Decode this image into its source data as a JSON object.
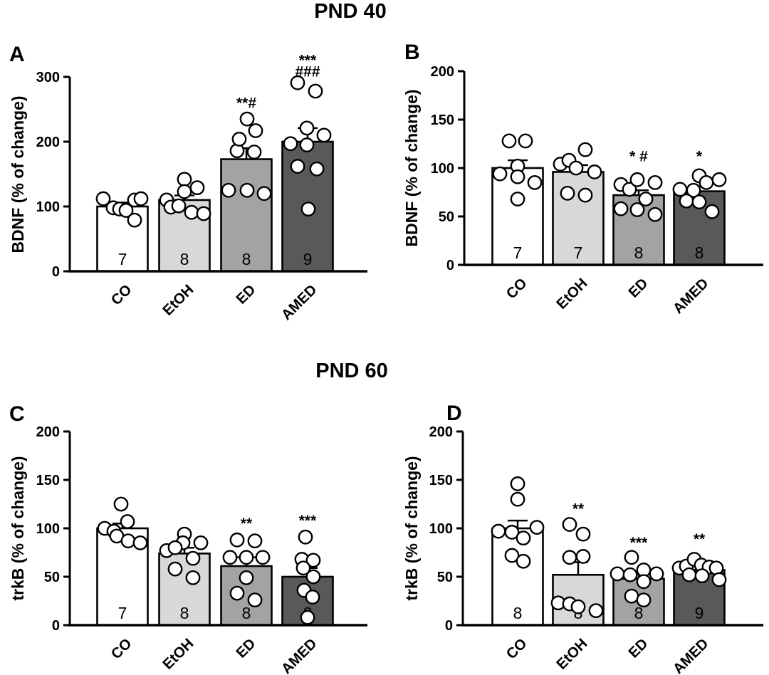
{
  "figure": {
    "title_top": "PND 40",
    "title_bottom": "PND 60",
    "point_style": "open-circle",
    "colors": {
      "CO": "#ffffff",
      "EtOH": "#d8d8d8",
      "ED": "#a3a3a3",
      "AMED": "#595959",
      "outline": "#000000"
    }
  },
  "chart_data": [
    {
      "type": "bar",
      "panel": "A",
      "section": "PND 40",
      "ylabel": "BDNF (% of change)",
      "ylim": [
        0,
        300
      ],
      "ytick_step": 100,
      "categories": [
        "CO",
        "EtOH",
        "ED",
        "AMED"
      ],
      "bars": [
        {
          "category": "CO",
          "mean": 100,
          "sem": 6,
          "n": 7,
          "fill": "#ffffff",
          "sig_lines": [],
          "sig_y": null,
          "points": [
            [
              -27,
              112
            ],
            [
              -13,
              98
            ],
            [
              -4,
              96
            ],
            [
              5,
              94
            ],
            [
              17,
              110
            ],
            [
              26,
              112
            ],
            [
              17,
              79
            ]
          ]
        },
        {
          "category": "EtOH",
          "mean": 110,
          "sem": 7,
          "n": 8,
          "fill": "#d8d8d8",
          "sig_lines": [],
          "sig_y": null,
          "points": [
            [
              -25,
              110
            ],
            [
              -19,
              99
            ],
            [
              -8,
              101
            ],
            [
              0,
              142
            ],
            [
              0,
              123
            ],
            [
              18,
              129
            ],
            [
              10,
              91
            ],
            [
              27,
              89
            ]
          ]
        },
        {
          "category": "ED",
          "mean": 173,
          "sem": 17,
          "n": 8,
          "fill": "#a3a3a3",
          "sig_lines": [
            "**#"
          ],
          "sig_y": 252,
          "points": [
            [
              -25,
              125
            ],
            [
              1,
              125
            ],
            [
              25,
              120
            ],
            [
              -13,
              186
            ],
            [
              11,
              184
            ],
            [
              -10,
              204
            ],
            [
              1,
              235
            ],
            [
              13,
              217
            ]
          ]
        },
        {
          "category": "AMED",
          "mean": 200,
          "sem": 21,
          "n": 9,
          "fill": "#595959",
          "sig_lines": [
            "***",
            "###"
          ],
          "sig_y": 318,
          "points": [
            [
              -14,
              291
            ],
            [
              11,
              278
            ],
            [
              -1,
              221
            ],
            [
              -24,
              197
            ],
            [
              -1,
              195
            ],
            [
              23,
              210
            ],
            [
              -14,
              162
            ],
            [
              13,
              158
            ],
            [
              1,
              96
            ]
          ]
        }
      ]
    },
    {
      "type": "bar",
      "panel": "B",
      "section": "PND 40",
      "ylabel": "BDNF (% of change)",
      "ylim": [
        0,
        200
      ],
      "ytick_step": 50,
      "categories": [
        "CO",
        "EtOH",
        "ED",
        "AMED"
      ],
      "bars": [
        {
          "category": "CO",
          "mean": 100,
          "sem": 8,
          "n": 7,
          "fill": "#ffffff",
          "sig_lines": [],
          "sig_y": null,
          "points": [
            [
              -12,
              128
            ],
            [
              11,
              128
            ],
            [
              0,
              102
            ],
            [
              -25,
              94
            ],
            [
              0,
              91
            ],
            [
              24,
              85
            ],
            [
              0,
              68
            ]
          ]
        },
        {
          "category": "EtOH",
          "mean": 96,
          "sem": 7,
          "n": 7,
          "fill": "#d8d8d8",
          "sig_lines": [],
          "sig_y": null,
          "points": [
            [
              -25,
              104
            ],
            [
              -13,
              108
            ],
            [
              10,
              119
            ],
            [
              -3,
              100
            ],
            [
              23,
              96
            ],
            [
              -15,
              74
            ],
            [
              10,
              72
            ]
          ]
        },
        {
          "category": "ED",
          "mean": 72,
          "sem": 5,
          "n": 8,
          "fill": "#a3a3a3",
          "sig_lines": [
            "* #"
          ],
          "sig_y": 107,
          "points": [
            [
              -25,
              83
            ],
            [
              -13,
              78
            ],
            [
              -2,
              88
            ],
            [
              23,
              85
            ],
            [
              10,
              68
            ],
            [
              -25,
              58
            ],
            [
              -2,
              57
            ],
            [
              23,
              52
            ]
          ]
        },
        {
          "category": "AMED",
          "mean": 76,
          "sem": 5,
          "n": 8,
          "fill": "#595959",
          "sig_lines": [
            "*"
          ],
          "sig_y": 107,
          "points": [
            [
              -27,
              78
            ],
            [
              -8,
              77
            ],
            [
              0,
              92
            ],
            [
              10,
              85
            ],
            [
              28,
              88
            ],
            [
              -18,
              66
            ],
            [
              0,
              65
            ],
            [
              18,
              55
            ]
          ]
        }
      ]
    },
    {
      "type": "bar",
      "panel": "C",
      "section": "PND 60",
      "ylabel": "trkB (% of change)",
      "ylim": [
        0,
        200
      ],
      "ytick_step": 50,
      "categories": [
        "CO",
        "EtOH",
        "ED",
        "AMED"
      ],
      "bars": [
        {
          "category": "CO",
          "mean": 100,
          "sem": 5,
          "n": 7,
          "fill": "#ffffff",
          "sig_lines": [],
          "sig_y": null,
          "points": [
            [
              -2,
              125
            ],
            [
              7,
              107
            ],
            [
              -25,
              100
            ],
            [
              -12,
              97
            ],
            [
              -8,
              92
            ],
            [
              8,
              87
            ],
            [
              25,
              85
            ]
          ]
        },
        {
          "category": "EtOH",
          "mean": 74,
          "sem": 6,
          "n": 8,
          "fill": "#d8d8d8",
          "sig_lines": [],
          "sig_y": null,
          "points": [
            [
              0,
              94
            ],
            [
              -2,
              85
            ],
            [
              23,
              85
            ],
            [
              -25,
              77
            ],
            [
              -13,
              80
            ],
            [
              12,
              69
            ],
            [
              -13,
              58
            ],
            [
              12,
              49
            ]
          ]
        },
        {
          "category": "ED",
          "mean": 61,
          "sem": 9,
          "n": 8,
          "fill": "#a3a3a3",
          "sig_lines": [
            "**"
          ],
          "sig_y": 100,
          "points": [
            [
              -13,
              88
            ],
            [
              12,
              87
            ],
            [
              -23,
              70
            ],
            [
              0,
              70
            ],
            [
              23,
              70
            ],
            [
              0,
              49
            ],
            [
              -13,
              33
            ],
            [
              12,
              26
            ]
          ]
        },
        {
          "category": "AMED",
          "mean": 50,
          "sem": 9,
          "n": 8,
          "fill": "#595959",
          "sig_lines": [
            "***"
          ],
          "sig_y": 103,
          "points": [
            [
              -3,
              91
            ],
            [
              -8,
              68
            ],
            [
              8,
              67
            ],
            [
              -6,
              59
            ],
            [
              8,
              50
            ],
            [
              -5,
              36
            ],
            [
              7,
              29
            ],
            [
              0,
              8
            ]
          ]
        }
      ]
    },
    {
      "type": "bar",
      "panel": "D",
      "section": "PND 60",
      "ylabel": "trkB (% of change)",
      "ylim": [
        0,
        200
      ],
      "ytick_step": 50,
      "categories": [
        "CO",
        "EtOH",
        "ED",
        "AMED"
      ],
      "bars": [
        {
          "category": "CO",
          "mean": 100,
          "sem": 8,
          "n": 8,
          "fill": "#ffffff",
          "sig_lines": [],
          "sig_y": null,
          "points": [
            [
              0,
              146
            ],
            [
              0,
              130
            ],
            [
              27,
              101
            ],
            [
              -27,
              97
            ],
            [
              -8,
              96
            ],
            [
              8,
              90
            ],
            [
              -8,
              72
            ],
            [
              8,
              66
            ]
          ]
        },
        {
          "category": "EtOH",
          "mean": 52,
          "sem": 13,
          "n": 8,
          "fill": "#d8d8d8",
          "sig_lines": [
            "**"
          ],
          "sig_y": 115,
          "points": [
            [
              -12,
              104
            ],
            [
              7,
              94
            ],
            [
              -12,
              70
            ],
            [
              7,
              71
            ],
            [
              -28,
              23
            ],
            [
              -12,
              22
            ],
            [
              0,
              19
            ],
            [
              25,
              15
            ]
          ]
        },
        {
          "category": "ED",
          "mean": 48,
          "sem": 5,
          "n": 8,
          "fill": "#a3a3a3",
          "sig_lines": [
            "***"
          ],
          "sig_y": 80,
          "points": [
            [
              -10,
              70
            ],
            [
              -30,
              53
            ],
            [
              -12,
              52
            ],
            [
              7,
              57
            ],
            [
              25,
              53
            ],
            [
              7,
              45
            ],
            [
              -10,
              30
            ],
            [
              7,
              26
            ]
          ]
        },
        {
          "category": "AMED",
          "mean": 57,
          "sem": 4,
          "n": 9,
          "fill": "#595959",
          "sig_lines": [
            "**"
          ],
          "sig_y": 84,
          "points": [
            [
              -28,
              59
            ],
            [
              -18,
              61
            ],
            [
              -7,
              68
            ],
            [
              3,
              62
            ],
            [
              14,
              60
            ],
            [
              24,
              59
            ],
            [
              -14,
              52
            ],
            [
              4,
              51
            ],
            [
              28,
              47
            ]
          ]
        }
      ]
    }
  ]
}
